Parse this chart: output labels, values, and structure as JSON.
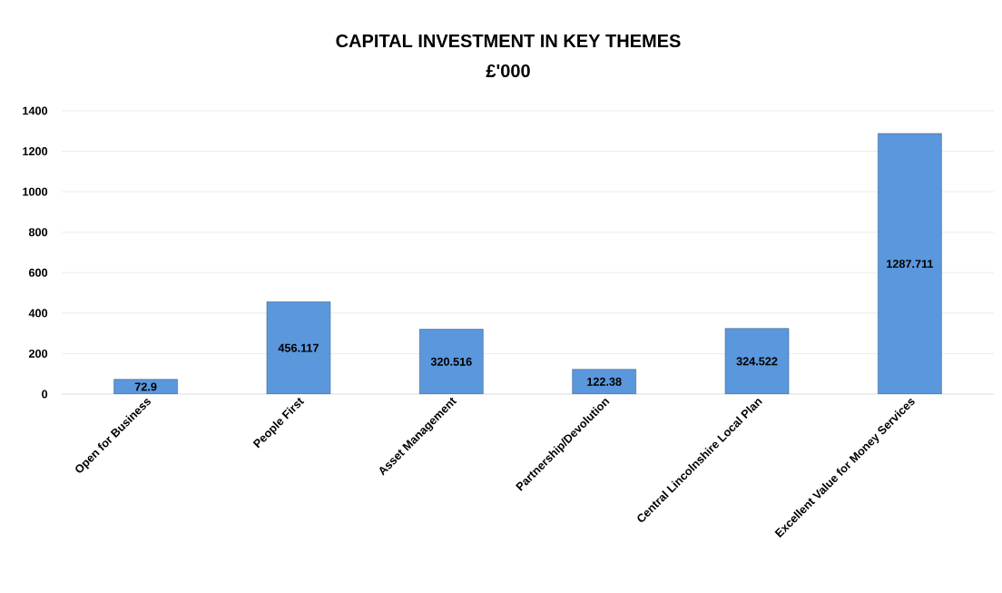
{
  "chart_data": {
    "type": "bar",
    "title": "CAPITAL INVESTMENT IN KEY THEMES",
    "subtitle": "£'000",
    "categories": [
      "Open for Business",
      "People First",
      "Asset Management",
      "Partnership/Devolution",
      "Central Lincolnshire Local Plan",
      "Excellent Value for Money Services"
    ],
    "values": [
      72.9,
      456.117,
      320.516,
      122.38,
      324.522,
      1287.711
    ],
    "color": "#5b97dc",
    "ylim": [
      0,
      1400
    ],
    "yticks": [
      0,
      200,
      400,
      600,
      800,
      1000,
      1200,
      1400
    ],
    "grid": "y",
    "data_labels": true
  }
}
